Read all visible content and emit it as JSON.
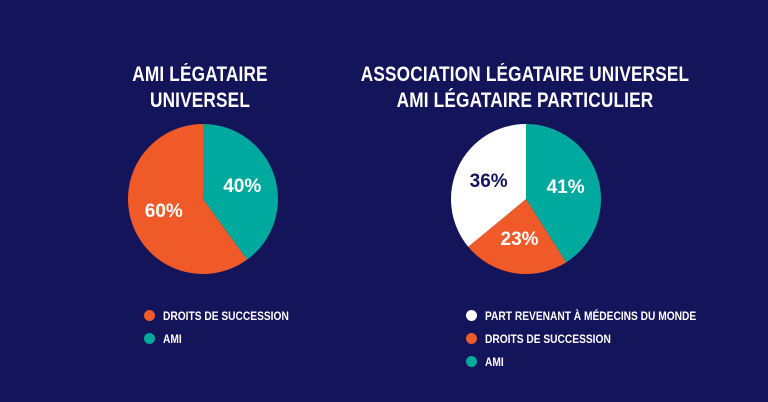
{
  "colors": {
    "background": "#14145a",
    "droits": "#f05a28",
    "ami": "#00a99d",
    "part": "#ffffff",
    "label_dark": "#14145a",
    "label_light": "#ffffff"
  },
  "chart_data": [
    {
      "type": "pie",
      "title": [
        "AMI LÉGATAIRE",
        "UNIVERSEL"
      ],
      "slices": [
        {
          "label": "AMI",
          "value": 40,
          "display": "40%",
          "color": "#00a99d",
          "text_color": "#ffffff"
        },
        {
          "label": "DROITS DE SUCCESSION",
          "value": 60,
          "display": "60%",
          "color": "#f05a28",
          "text_color": "#ffffff"
        }
      ],
      "legend": [
        {
          "label": "DROITS DE SUCCESSION",
          "color": "#f05a28"
        },
        {
          "label": "AMI",
          "color": "#00a99d"
        }
      ],
      "legend_placement": "bottom"
    },
    {
      "type": "pie",
      "title": [
        "ASSOCIATION LÉGATAIRE UNIVERSEL",
        "AMI LÉGATAIRE PARTICULIER"
      ],
      "slices": [
        {
          "label": "AMI",
          "value": 41,
          "display": "41%",
          "color": "#00a99d",
          "text_color": "#ffffff"
        },
        {
          "label": "DROITS DE SUCCESSION",
          "value": 23,
          "display": "23%",
          "color": "#f05a28",
          "text_color": "#ffffff"
        },
        {
          "label": "PART REVENANT À MÉDECINS DU MONDE",
          "value": 36,
          "display": "36%",
          "color": "#ffffff",
          "text_color": "#14145a"
        }
      ],
      "legend": [
        {
          "label": "PART REVENANT À MÉDECINS DU MONDE",
          "color": "#ffffff"
        },
        {
          "label": "DROITS DE SUCCESSION",
          "color": "#f05a28"
        },
        {
          "label": "AMI",
          "color": "#00a99d"
        }
      ],
      "legend_placement": "bottom"
    }
  ]
}
